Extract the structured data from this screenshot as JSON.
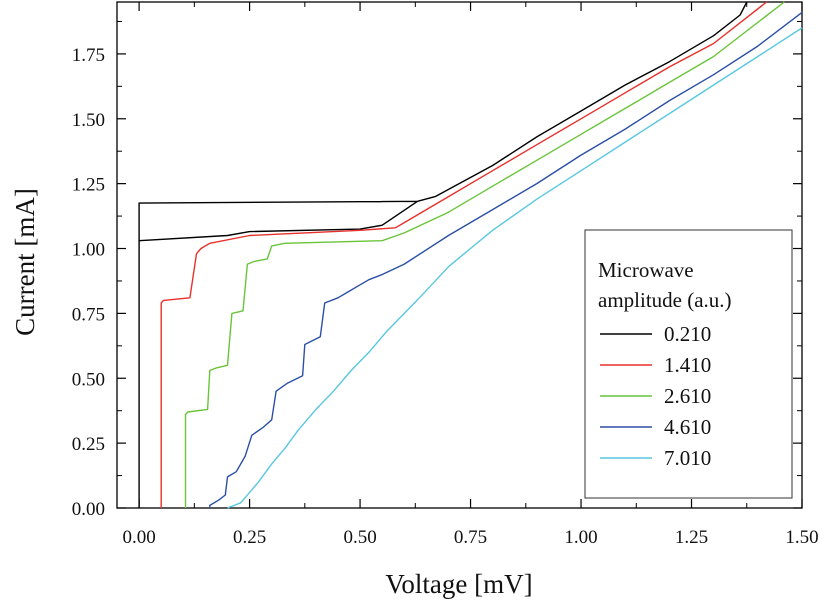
{
  "chart_data": {
    "type": "line",
    "title": "",
    "xlabel": "Voltage [mV]",
    "ylabel": "Current [mA]",
    "xlim": [
      -0.05,
      1.5
    ],
    "ylim": [
      0.0,
      1.95
    ],
    "xticks": [
      0.0,
      0.25,
      0.5,
      0.75,
      1.0,
      1.25,
      1.5
    ],
    "xtick_labels": [
      "0.00",
      "0.25",
      "0.50",
      "0.75",
      "1.00",
      "1.25",
      "1.50"
    ],
    "yticks": [
      0.0,
      0.25,
      0.5,
      0.75,
      1.0,
      1.25,
      1.5,
      1.75
    ],
    "ytick_labels": [
      "0.00",
      "0.25",
      "0.50",
      "0.75",
      "1.00",
      "1.25",
      "1.50",
      "1.75"
    ],
    "grid": false,
    "legend": {
      "title_lines": [
        "Microwave",
        "amplitude (a.u.)"
      ],
      "position": "bottom-right"
    },
    "series": [
      {
        "name": "0.210",
        "color": "#000000",
        "points": [
          [
            0.0,
            0.0
          ],
          [
            0.0,
            1.175
          ],
          [
            0.63,
            1.182
          ],
          [
            0.67,
            1.2
          ],
          [
            0.8,
            1.32
          ],
          [
            0.9,
            1.43
          ],
          [
            1.0,
            1.53
          ],
          [
            1.1,
            1.63
          ],
          [
            1.2,
            1.72
          ],
          [
            1.3,
            1.82
          ],
          [
            1.36,
            1.9
          ],
          [
            1.375,
            1.95
          ],
          null,
          [
            0.0,
            1.03
          ],
          [
            0.2,
            1.05
          ],
          [
            0.25,
            1.065
          ],
          [
            0.5,
            1.075
          ],
          [
            0.55,
            1.09
          ],
          [
            0.63,
            1.182
          ]
        ]
      },
      {
        "name": "1.410",
        "color": "#e8302a",
        "points": [
          [
            0.05,
            0.0
          ],
          [
            0.05,
            0.79
          ],
          [
            0.055,
            0.8
          ],
          [
            0.115,
            0.81
          ],
          [
            0.13,
            0.98
          ],
          [
            0.14,
            1.0
          ],
          [
            0.16,
            1.02
          ],
          [
            0.25,
            1.05
          ],
          [
            0.5,
            1.07
          ],
          [
            0.58,
            1.08
          ],
          [
            0.6,
            1.1
          ],
          [
            0.7,
            1.2
          ],
          [
            0.8,
            1.3
          ],
          [
            0.9,
            1.4
          ],
          [
            1.0,
            1.5
          ],
          [
            1.1,
            1.6
          ],
          [
            1.2,
            1.7
          ],
          [
            1.3,
            1.79
          ],
          [
            1.42,
            1.95
          ]
        ]
      },
      {
        "name": "2.610",
        "color": "#6ac43a",
        "points": [
          [
            0.105,
            0.0
          ],
          [
            0.105,
            0.36
          ],
          [
            0.11,
            0.37
          ],
          [
            0.155,
            0.38
          ],
          [
            0.16,
            0.53
          ],
          [
            0.175,
            0.54
          ],
          [
            0.2,
            0.55
          ],
          [
            0.21,
            0.75
          ],
          [
            0.235,
            0.76
          ],
          [
            0.245,
            0.94
          ],
          [
            0.26,
            0.95
          ],
          [
            0.29,
            0.96
          ],
          [
            0.3,
            1.01
          ],
          [
            0.33,
            1.02
          ],
          [
            0.55,
            1.03
          ],
          [
            0.6,
            1.06
          ],
          [
            0.7,
            1.14
          ],
          [
            0.8,
            1.24
          ],
          [
            0.9,
            1.34
          ],
          [
            1.0,
            1.44
          ],
          [
            1.1,
            1.54
          ],
          [
            1.2,
            1.64
          ],
          [
            1.3,
            1.74
          ],
          [
            1.46,
            1.95
          ]
        ]
      },
      {
        "name": "4.610",
        "color": "#2b4fa6",
        "points": [
          [
            0.16,
            0.0
          ],
          [
            0.16,
            0.01
          ],
          [
            0.18,
            0.03
          ],
          [
            0.195,
            0.05
          ],
          [
            0.2,
            0.12
          ],
          [
            0.22,
            0.14
          ],
          [
            0.24,
            0.2
          ],
          [
            0.255,
            0.28
          ],
          [
            0.28,
            0.31
          ],
          [
            0.3,
            0.34
          ],
          [
            0.31,
            0.45
          ],
          [
            0.335,
            0.48
          ],
          [
            0.37,
            0.51
          ],
          [
            0.375,
            0.63
          ],
          [
            0.41,
            0.66
          ],
          [
            0.42,
            0.79
          ],
          [
            0.45,
            0.81
          ],
          [
            0.47,
            0.83
          ],
          [
            0.5,
            0.86
          ],
          [
            0.52,
            0.88
          ],
          [
            0.55,
            0.9
          ],
          [
            0.6,
            0.94
          ],
          [
            0.7,
            1.05
          ],
          [
            0.8,
            1.15
          ],
          [
            0.9,
            1.25
          ],
          [
            1.0,
            1.36
          ],
          [
            1.1,
            1.46
          ],
          [
            1.2,
            1.57
          ],
          [
            1.3,
            1.67
          ],
          [
            1.4,
            1.78
          ],
          [
            1.5,
            1.91
          ]
        ]
      },
      {
        "name": "7.010",
        "color": "#58c7e0",
        "points": [
          [
            0.2,
            0.0
          ],
          [
            0.23,
            0.02
          ],
          [
            0.25,
            0.06
          ],
          [
            0.27,
            0.1
          ],
          [
            0.3,
            0.17
          ],
          [
            0.33,
            0.23
          ],
          [
            0.36,
            0.3
          ],
          [
            0.4,
            0.38
          ],
          [
            0.44,
            0.45
          ],
          [
            0.48,
            0.53
          ],
          [
            0.52,
            0.6
          ],
          [
            0.56,
            0.68
          ],
          [
            0.6,
            0.75
          ],
          [
            0.64,
            0.82
          ],
          [
            0.7,
            0.93
          ],
          [
            0.75,
            1.0
          ],
          [
            0.8,
            1.07
          ],
          [
            0.9,
            1.19
          ],
          [
            1.0,
            1.3
          ],
          [
            1.1,
            1.41
          ],
          [
            1.2,
            1.52
          ],
          [
            1.3,
            1.63
          ],
          [
            1.4,
            1.74
          ],
          [
            1.5,
            1.85
          ]
        ]
      }
    ]
  }
}
